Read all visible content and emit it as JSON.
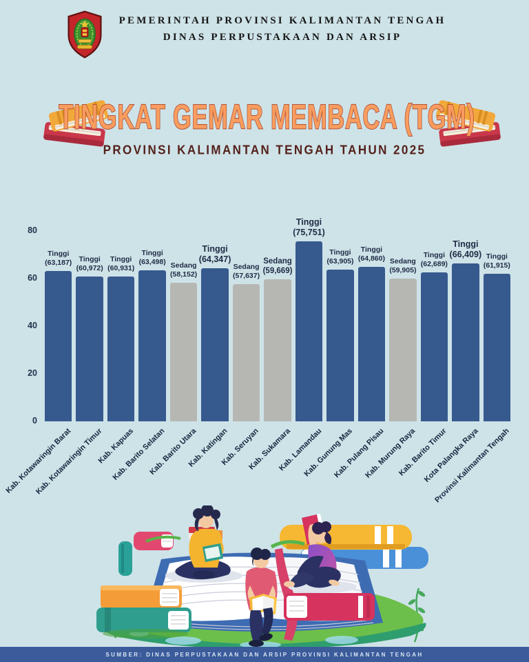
{
  "header": {
    "line1": "PEMERINTAH PROVINSI KALIMANTAN TENGAH",
    "line2": "DINAS PERPUSTAKAAN DAN ARSIP"
  },
  "title": {
    "main": "TINGKAT GEMAR MEMBACA (TGM)",
    "subtitle": "PROVINSI KALIMANTAN TENGAH TAHUN 2025"
  },
  "chart_data": {
    "type": "bar",
    "title": "Tingkat Gemar Membaca (TGM) Provinsi Kalimantan Tengah Tahun 2025",
    "categories": [
      "Kab. Kotawaringin Barat",
      "Kab. Kotawaringin Timur",
      "Kab. Kapuas",
      "Kab. Barito Selatan",
      "Kab. Barito Utara",
      "Kab. Katingan",
      "Kab. Seruyan",
      "Kab. Sukamara",
      "Kab. Lamandau",
      "Kab. Gunung Mas",
      "Kab. Pulang Pisau",
      "Kab. Murung Raya",
      "Kab. Barito Timur",
      "Kota Palangka Raya",
      "Provinsi Kalimantan Tengah"
    ],
    "values": [
      63.187,
      60.972,
      60.931,
      63.498,
      58.152,
      64.347,
      57.637,
      59.669,
      75.751,
      63.905,
      64.86,
      59.905,
      62.689,
      66.409,
      61.915
    ],
    "value_labels": [
      "(63,187)",
      "(60,972)",
      "(60,931)",
      "(63,498)",
      "(58,152)",
      "(64,347)",
      "(57,637)",
      "(59,669)",
      "(75,751)",
      "(63,905)",
      "(64,860)",
      "(59,905)",
      "(62,689)",
      "(66,409)",
      "(61,915)"
    ],
    "levels": [
      "Tinggi",
      "Tinggi",
      "Tinggi",
      "Tinggi",
      "Sedang",
      "Tinggi",
      "Sedang",
      "Sedang",
      "Tinggi",
      "Tinggi",
      "Tinggi",
      "Sedang",
      "Tinggi",
      "Tinggi",
      "Tinggi"
    ],
    "y_ticks": [
      0,
      20,
      40,
      60,
      80
    ],
    "ylim": [
      0,
      80
    ],
    "xlabel": "",
    "ylabel": "",
    "grid": false,
    "legend_position": "none",
    "colors": {
      "tinggi": "#36598E",
      "sedang": "#B6B7B3"
    }
  },
  "footer": {
    "source": "SUMBER: DINAS PERPUSTAKAAN DAN ARSIP PROVINSI KALIMANTAN TENGAH"
  }
}
